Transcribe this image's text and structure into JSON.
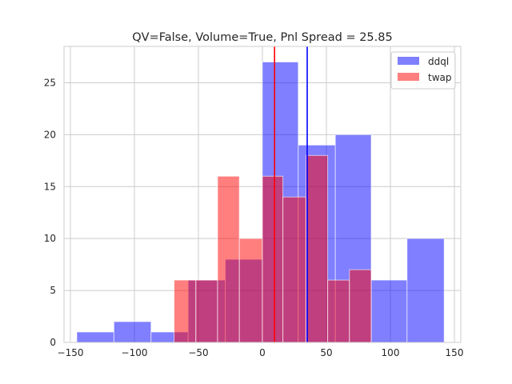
{
  "chart_data": {
    "type": "bar",
    "title": "QV=False, Volume=True, Pnl Spread = 25.85",
    "xlabel": "",
    "ylabel": "",
    "xlim": [
      -155,
      155
    ],
    "ylim": [
      0,
      28.5
    ],
    "xticks": [
      -150,
      -100,
      -50,
      0,
      50,
      100,
      150
    ],
    "xtick_labels": [
      "−150",
      "−100",
      "−50",
      "0",
      "50",
      "100",
      "150"
    ],
    "yticks": [
      0,
      5,
      10,
      15,
      20,
      25
    ],
    "ytick_labels": [
      "0",
      "5",
      "10",
      "15",
      "20",
      "25"
    ],
    "grid": true,
    "legend_position": "top-right",
    "series": [
      {
        "name": "ddql",
        "color": "#0000ff",
        "alpha": 0.5,
        "bins": [
          {
            "x0": -145,
            "x1": -116,
            "count": 1
          },
          {
            "x0": -116,
            "x1": -87,
            "count": 2
          },
          {
            "x0": -87,
            "x1": -58,
            "count": 1
          },
          {
            "x0": -58,
            "x1": -29,
            "count": 6
          },
          {
            "x0": -29,
            "x1": 0,
            "count": 8
          },
          {
            "x0": 0,
            "x1": 28,
            "count": 27
          },
          {
            "x0": 28,
            "x1": 57,
            "count": 19
          },
          {
            "x0": 57,
            "x1": 85,
            "count": 20
          },
          {
            "x0": 85,
            "x1": 113,
            "count": 6
          },
          {
            "x0": 113,
            "x1": 142,
            "count": 10
          }
        ]
      },
      {
        "name": "twap",
        "color": "#ff0000",
        "alpha": 0.5,
        "bins": [
          {
            "x0": -69,
            "x1": -52,
            "count": 6
          },
          {
            "x0": -52,
            "x1": -35,
            "count": 6
          },
          {
            "x0": -35,
            "x1": -18,
            "count": 16
          },
          {
            "x0": -18,
            "x1": 0,
            "count": 10
          },
          {
            "x0": 0,
            "x1": 16,
            "count": 16
          },
          {
            "x0": 16,
            "x1": 34,
            "count": 14
          },
          {
            "x0": 34,
            "x1": 51,
            "count": 18
          },
          {
            "x0": 51,
            "x1": 68,
            "count": 6
          },
          {
            "x0": 68,
            "x1": 85,
            "count": 7
          }
        ]
      }
    ],
    "vlines": [
      {
        "series": "ddql",
        "x": 35,
        "color": "#0000ff"
      },
      {
        "series": "twap",
        "x": 9.5,
        "color": "#ff0000"
      }
    ]
  }
}
